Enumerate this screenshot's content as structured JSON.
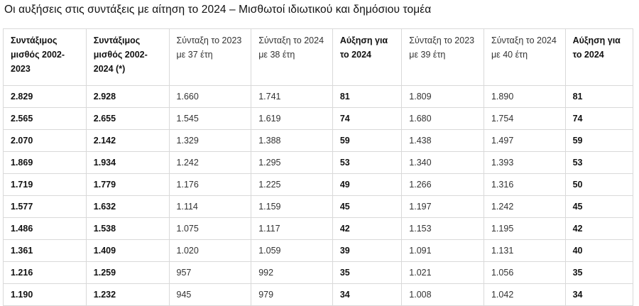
{
  "title": "Οι αυξήσεις στις συντάξεις με αίτηση το 2024 – Μισθωτοί ιδιωτικού και δημόσιου τομέα",
  "table": {
    "headers": [
      "Συντάξιμος μισθός 2002-2023",
      "Συντάξιμος μισθός 2002-2024 (*)",
      "Σύνταξη το 2023 με 37 έτη",
      "Σύνταξη το 2024 με 38 έτη",
      "Αύξηση για το 2024",
      "Σύνταξη το 2023 με 39 έτη",
      "Σύνταξη το 2024 με 40 έτη",
      "Αύξηση για το 2024"
    ],
    "rows": [
      [
        "2.829",
        "2.928",
        "1.660",
        "1.741",
        "81",
        "1.809",
        "1.890",
        "81"
      ],
      [
        "2.565",
        "2.655",
        "1.545",
        "1.619",
        "74",
        "1.680",
        "1.754",
        "74"
      ],
      [
        "2.070",
        "2.142",
        "1.329",
        "1.388",
        "59",
        "1.438",
        "1.497",
        "59"
      ],
      [
        "1.869",
        "1.934",
        "1.242",
        "1.295",
        "53",
        "1.340",
        "1.393",
        "53"
      ],
      [
        "1.719",
        "1.779",
        "1.176",
        "1.225",
        "49",
        "1.266",
        "1.316",
        "50"
      ],
      [
        "1.577",
        "1.632",
        "1.114",
        "1.159",
        "45",
        "1.197",
        "1.242",
        "45"
      ],
      [
        "1.486",
        "1.538",
        "1.075",
        "1.117",
        "42",
        "1.153",
        "1.195",
        "42"
      ],
      [
        "1.361",
        "1.409",
        "1.020",
        "1.059",
        "39",
        "1.091",
        "1.131",
        "40"
      ],
      [
        "1.216",
        "1.259",
        "957",
        "992",
        "35",
        "1.021",
        "1.056",
        "35"
      ],
      [
        "1.190",
        "1.232",
        "945",
        "979",
        "34",
        "1.008",
        "1.042",
        "34"
      ]
    ]
  }
}
